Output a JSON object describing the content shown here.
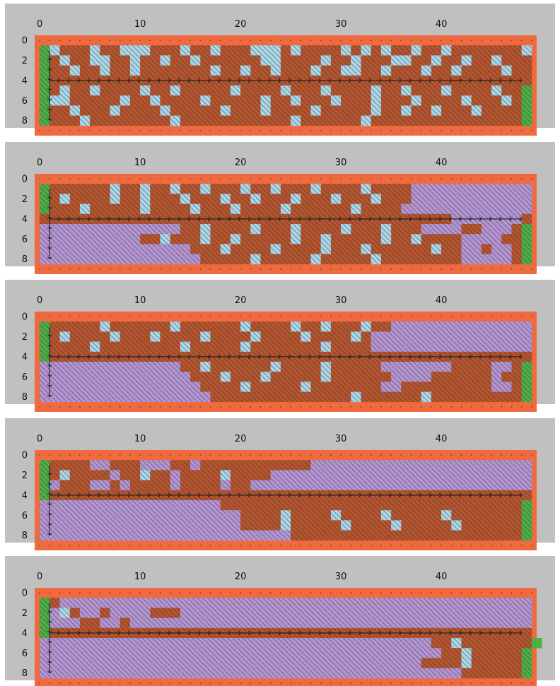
{
  "figure": {
    "x_ticks": [
      "0",
      "10",
      "20",
      "30",
      "40"
    ],
    "y_ticks": [
      "0",
      "2",
      "4",
      "6",
      "8"
    ],
    "colors": {
      "background": "#c0c0c0",
      "wall": "#ef6a3f",
      "open": "#b396cf",
      "hot": "#b5552a",
      "cold": "#a9d8e6",
      "endpoint": "#4cb043",
      "arrow": "#1f1f1f",
      "wall_dot": "#7a3a1a"
    }
  },
  "chart_data": {
    "type": "heatmap",
    "cell_codes": {
      ".": "open",
      "b": "hot",
      "c": "cold",
      "g": "endpoint"
    },
    "panels": [
      {
        "name": "",
        "rows": [
          "gcbbbcbbcccbbbcbbcbbbcccbcbbbbcbcbcbbcbbcbbbbbbbc",
          "gbcbbccbbcbbcbbcbbbbbbccbbbbcbbcbbbccbbcbbcbbcbbb",
          "gbbcbbcbbcbbbbbbbcbbcbbcbbbcbbccbbcbbbcbbcbbbbcbb",
          "gbbbbbbbbbbbbbbbbbbbbbbbbbbbbbbbbbbbbbbbbbbbbbbbb",
          "gbcbbcbbbbcbbcbbbbbcbbbbcbbbcbbbbcbbcbbbcbbbbcbbg",
          "gccbbbbbcbbcbbbbcbbbbbcbbcbbbcbbbcbbbcbbbbcbbbcbg",
          "gbbcbbbcbbbbcbbbbbcbbbcbbbbcbbbbbcbbcbbcbbbcbbbbg",
          "gbbbcbbbbbbbbcbbbbbbbbbbbcbbbbbbcbbbbbbbbbbbbbbbg"
        ]
      },
      {
        "name": "",
        "rows": [
          "gbbbbbbcbbcbbcbbcbbbcbbcbbbcbbbbcbbbb............",
          "gbcbbbbcbbcbbbcbbbcbbcbbbcbbbcbbbcbbb............",
          "gbbbcbbbbbcbbbbcbbbcbbbbcbbbbbbcbbbb.............",
          "bbbbbbbbbbbbbbbbbbbbbbbbbbbbbbbbbbbbbbbbb.......b",
          "..............bbcbbbbcbbbcbbbbcbbbcbbb....bb...bg",
          "..........bbcbbbcbbcbbbbbcbbcbbbbbcbbcbbbb....bbg",
          "...............bbbcbbbbcbbbbcbbbcbbbbbbcbb..b..bg",
          "................bbbbbcbbbbbcbbbbbcbbbbbbbb.....bg"
        ]
      },
      {
        "name": "",
        "rows": [
          "gbbbbbcbbbbbbcbbbbbbcbbbbcbbcbbbcbb..............",
          "gbcbbbbcbbbcbbbbcbbbbcbbbbcbbbbcb................",
          "gbbbbcbbbbbbbbcbbbbbcbbbbbbbcbbbb................",
          "gbbbbbbbbbbbbbbbbbbbbbbbbbbbbbbbbbbbbbbbbbbbbbbbb",
          "..............bbcbbbbbbcbbbbcbbbbb.......bbbb..bg",
          "...............bbbcbbbcbbbbbcbbbbbb....bbbbbb.bbg",
          "................bbbbcbbbbbcbbbbbbb..bbbbbbbbb..bg",
          ".................bbbbbbbbbbbbbbcbbbbbbcbbbbbbbbbg"
        ]
      },
      {
        "name": "",
        "rows": [
          "gbbbb..bbb...bb.bbbbbbbbbbb......................",
          "gbcbbbb.bbcbb.bbbbcbbbb..........................",
          "g.bbb..b.bbbb.bbbb.bb............................",
          "gbbbbbbbbbbbbbbbbbbbbbbbbbbbbbbbbbbbbbbbbbbbbbbbb",
          "..................bbbbbbbbbbbbbbbbbbbbbbbbbbbbbbg",
          "....................bbbbcbbbbcbbbbcbbbbbcbbbbbbbg",
          "....................bbbbcbbbbbcbbbbcbbbbbcbbbbbbg",
          ".........................bbbbbbbbbbbbbbbbbbbbbbbg"
        ]
      },
      {
        "name": "",
        "rows": [
          "gb...............................................",
          "g.cb..b....bbb...................................",
          "g...bb..b........................................",
          "gbbbbbbbbbbbbbbbbbbbbbbbbbbbbbbbbbbbbbbbbbbbbbbbb",
          ".......................................bbcbbbbbbbg",
          "........................................bbcbbbbbg",
          "......................................bbbbcbbbbbg",
          "..........................................bbbbbbg"
        ]
      }
    ]
  }
}
